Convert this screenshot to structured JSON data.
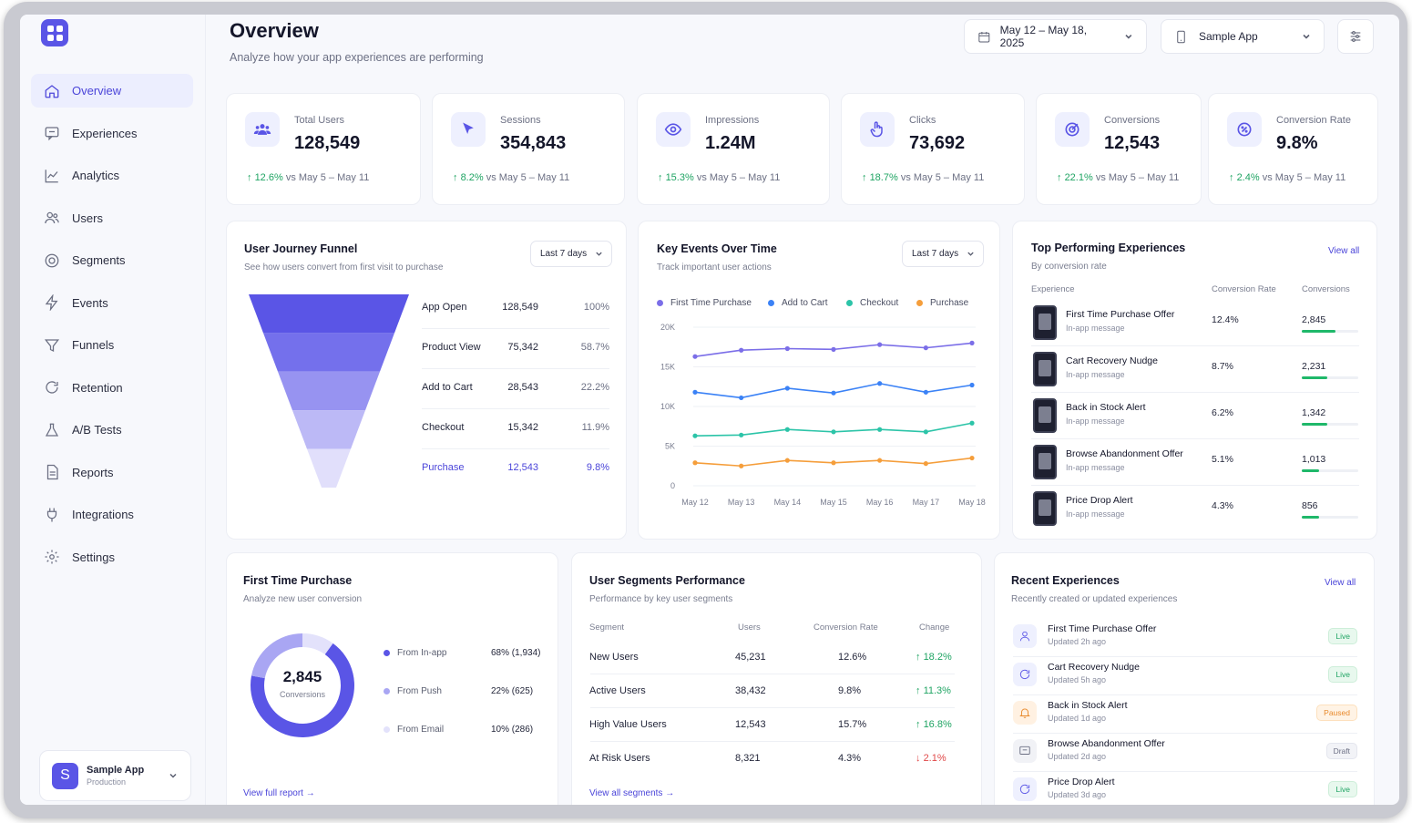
{
  "sidebar": {
    "items": [
      {
        "label": "Overview",
        "icon": "home-icon"
      },
      {
        "label": "Experiences",
        "icon": "message-icon"
      },
      {
        "label": "Analytics",
        "icon": "chart-line-icon"
      },
      {
        "label": "Users",
        "icon": "users-icon"
      },
      {
        "label": "Segments",
        "icon": "target-icon"
      },
      {
        "label": "Events",
        "icon": "bolt-icon"
      },
      {
        "label": "Funnels",
        "icon": "filter-icon"
      },
      {
        "label": "Retention",
        "icon": "refresh-icon"
      },
      {
        "label": "A/B Tests",
        "icon": "flask-icon"
      },
      {
        "label": "Reports",
        "icon": "document-icon"
      },
      {
        "label": "Integrations",
        "icon": "plug-icon"
      },
      {
        "label": "Settings",
        "icon": "gear-icon"
      }
    ],
    "app": {
      "avatar": "S",
      "name": "Sample App",
      "env": "Production"
    }
  },
  "header": {
    "title": "Overview",
    "subtitle": "Analyze how your app experiences are performing",
    "date_range": "May 12 – May 18, 2025",
    "app_select": "Sample App"
  },
  "stats": [
    {
      "label": "Total Users",
      "value": "128,549",
      "change": "12.6%",
      "compare": "vs May 5 – May 11",
      "icon": "users-icon"
    },
    {
      "label": "Sessions",
      "value": "354,843",
      "change": "8.2%",
      "compare": "vs May 5 – May 11",
      "icon": "cursor-icon"
    },
    {
      "label": "Impressions",
      "value": "1.24M",
      "change": "15.3%",
      "compare": "vs May 5 – May 11",
      "icon": "eye-icon"
    },
    {
      "label": "Clicks",
      "value": "73,692",
      "change": "18.7%",
      "compare": "vs May 5 – May 11",
      "icon": "hand-pointer-icon"
    },
    {
      "label": "Conversions",
      "value": "12,543",
      "change": "22.1%",
      "compare": "vs May 5 – May 11",
      "icon": "target-icon"
    },
    {
      "label": "Conversion Rate",
      "value": "9.8%",
      "change": "2.4%",
      "compare": "vs May 5 – May 11",
      "icon": "percent-icon"
    }
  ],
  "funnel": {
    "title": "User Journey Funnel",
    "subtitle": "See how users convert from first visit to purchase",
    "range": "Last 7 days",
    "steps": [
      {
        "label": "App Open",
        "value": "128,549",
        "pct": "100%"
      },
      {
        "label": "Product View",
        "value": "75,342",
        "pct": "58.7%"
      },
      {
        "label": "Add to Cart",
        "value": "28,543",
        "pct": "22.2%"
      },
      {
        "label": "Checkout",
        "value": "15,342",
        "pct": "11.9%"
      },
      {
        "label": "Purchase",
        "value": "12,543",
        "pct": "9.8%"
      }
    ],
    "colors": [
      "#5a55e6",
      "#7470ec",
      "#9793f1",
      "#bcb9f6",
      "#e1dffb"
    ]
  },
  "key_events": {
    "title": "Key Events Over Time",
    "subtitle": "Track important user actions",
    "range": "Last 7 days"
  },
  "chart_data": {
    "type": "line",
    "x": [
      "May 12",
      "May 13",
      "May 14",
      "May 15",
      "May 16",
      "May 17",
      "May 18"
    ],
    "ylim": [
      0,
      20000
    ],
    "yticks": [
      "20K",
      "15K",
      "10K",
      "5K",
      "0"
    ],
    "grid": true,
    "legend": "top",
    "series": [
      {
        "name": "First Time Purchase",
        "color": "#7b6ee8",
        "values": [
          16300,
          17100,
          17300,
          17200,
          17800,
          17400,
          18000
        ]
      },
      {
        "name": "Add to Cart",
        "color": "#3b82f6",
        "values": [
          11800,
          11100,
          12300,
          11700,
          12900,
          11800,
          12700
        ]
      },
      {
        "name": "Checkout",
        "color": "#2cc4a8",
        "values": [
          6300,
          6400,
          7100,
          6800,
          7100,
          6800,
          7900
        ]
      },
      {
        "name": "Purchase",
        "color": "#f59e3b",
        "values": [
          2900,
          2500,
          3200,
          2900,
          3200,
          2800,
          3500
        ]
      }
    ]
  },
  "top_experiences": {
    "title": "Top Performing Experiences",
    "subtitle": "By conversion rate",
    "view_all": "View all",
    "headers": {
      "experience": "Experience",
      "rate": "Conversion Rate",
      "conversions": "Conversions"
    },
    "rows": [
      {
        "name": "First Time Purchase Offer",
        "type": "In-app message",
        "rate": "12.4%",
        "conversions": "2,845",
        "bar": 0.6
      },
      {
        "name": "Cart Recovery Nudge",
        "type": "In-app message",
        "rate": "8.7%",
        "conversions": "2,231",
        "bar": 0.45
      },
      {
        "name": "Back in Stock Alert",
        "type": "In-app message",
        "rate": "6.2%",
        "conversions": "1,342",
        "bar": 0.45
      },
      {
        "name": "Browse Abandonment Offer",
        "type": "In-app message",
        "rate": "5.1%",
        "conversions": "1,013",
        "bar": 0.3
      },
      {
        "name": "Price Drop Alert",
        "type": "In-app message",
        "rate": "4.3%",
        "conversions": "856",
        "bar": 0.3
      }
    ]
  },
  "first_purchase": {
    "title": "First Time Purchase",
    "subtitle": "Analyze new user conversion",
    "total": "2,845",
    "total_label": "Conversions",
    "segments": [
      {
        "label": "From In-app",
        "value": "68% (1,934)",
        "share": 0.68,
        "color": "#5a55e6"
      },
      {
        "label": "From Push",
        "value": "22% (625)",
        "share": 0.22,
        "color": "#a9a6f3"
      },
      {
        "label": "From Email",
        "value": "10% (286)",
        "share": 0.1,
        "color": "#e3e2fb"
      }
    ],
    "link": "View full report"
  },
  "segments": {
    "title": "User Segments Performance",
    "subtitle": "Performance by key user segments",
    "headers": {
      "segment": "Segment",
      "users": "Users",
      "rate": "Conversion Rate",
      "change": "Change"
    },
    "rows": [
      {
        "segment": "New Users",
        "users": "45,231",
        "rate": "12.6%",
        "change": "18.2%",
        "dir": "up"
      },
      {
        "segment": "Active Users",
        "users": "38,432",
        "rate": "9.8%",
        "change": "11.3%",
        "dir": "up"
      },
      {
        "segment": "High Value Users",
        "users": "12,543",
        "rate": "15.7%",
        "change": "16.8%",
        "dir": "up"
      },
      {
        "segment": "At Risk Users",
        "users": "8,321",
        "rate": "4.3%",
        "change": "2.1%",
        "dir": "down"
      }
    ],
    "link": "View all segments"
  },
  "recent": {
    "title": "Recent Experiences",
    "subtitle": "Recently created or updated experiences",
    "view_all": "View all",
    "rows": [
      {
        "name": "First Time Purchase Offer",
        "updated": "Updated 2h ago",
        "status": "Live",
        "icon": "user-icon"
      },
      {
        "name": "Cart Recovery Nudge",
        "updated": "Updated 5h ago",
        "status": "Live",
        "icon": "refresh-icon"
      },
      {
        "name": "Back in Stock Alert",
        "updated": "Updated 1d ago",
        "status": "Paused",
        "icon": "bell-icon"
      },
      {
        "name": "Browse Abandonment Offer",
        "updated": "Updated 2d ago",
        "status": "Draft",
        "icon": "message-icon"
      },
      {
        "name": "Price Drop Alert",
        "updated": "Updated 3d ago",
        "status": "Live",
        "icon": "refresh-icon"
      }
    ]
  }
}
